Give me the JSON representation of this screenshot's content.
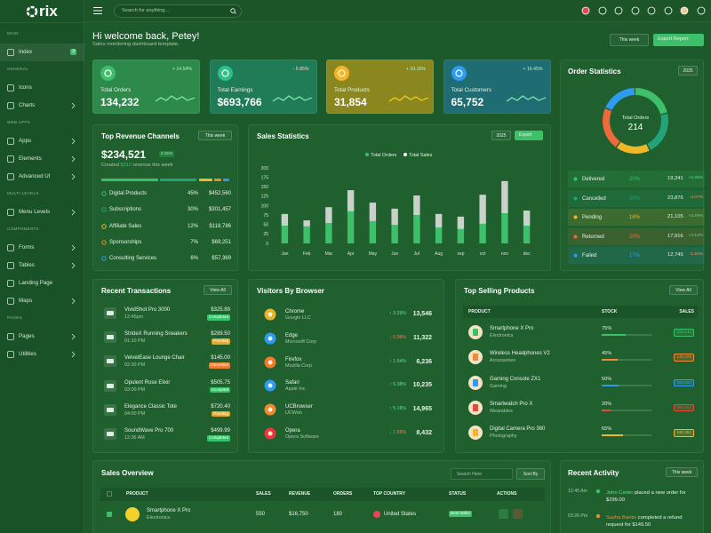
{
  "brand": "rix",
  "search_placeholder": "Search for anything...",
  "sidebar": [
    {
      "heading": "MAIN",
      "items": [
        {
          "label": "Index",
          "badge": "3"
        }
      ]
    },
    {
      "heading": "GENERAL",
      "items": [
        {
          "label": "Icons"
        },
        {
          "label": "Charts"
        }
      ]
    },
    {
      "heading": "WEB APPS",
      "items": [
        {
          "label": "Apps"
        },
        {
          "label": "Elements"
        },
        {
          "label": "Advanced UI"
        }
      ]
    },
    {
      "heading": "MULTI LEVELS",
      "items": [
        {
          "label": "Menu Levels"
        }
      ]
    },
    {
      "heading": "COMPONENTS",
      "items": [
        {
          "label": "Forms"
        },
        {
          "label": "Tables"
        },
        {
          "label": "Landing Page"
        },
        {
          "label": "Maps"
        }
      ]
    },
    {
      "heading": "PAGES",
      "items": [
        {
          "label": "Pages"
        },
        {
          "label": "Utilities"
        }
      ]
    }
  ],
  "header": {
    "greeting": "Hi welcome back, Petey!",
    "subtitle": "Sales monitoring dashboard template.",
    "period": "This week",
    "export": "Export Report"
  },
  "stats": [
    {
      "label": "Total Orders",
      "value": "134,232",
      "change": "+ 14.54%"
    },
    {
      "label": "Total Earnings",
      "value": "$693,766",
      "change": "- 5.85%"
    },
    {
      "label": "Total Products",
      "value": "31,854",
      "change": "+ 10.15%"
    },
    {
      "label": "Total Customers",
      "value": "65,752",
      "change": "+ 16.45%"
    }
  ],
  "revenue": {
    "title": "Top Revenue Channels",
    "period": "This week",
    "total": "$234,521",
    "change": "3.25%",
    "note_pre": "Created",
    "note_amount": "$312",
    "note_post": "revenue this week",
    "rows": [
      {
        "name": "Digital Products",
        "share": "45%",
        "amount": "$452,560"
      },
      {
        "name": "Subscriptions",
        "share": "30%",
        "amount": "$301,457"
      },
      {
        "name": "Affiliate Sales",
        "share": "12%",
        "amount": "$118,786"
      },
      {
        "name": "Sponsorships",
        "share": "7%",
        "amount": "$69,251"
      },
      {
        "name": "Consulting Services",
        "share": "6%",
        "amount": "$57,369"
      }
    ]
  },
  "sales_controls": {
    "year": "2025",
    "export": "Export"
  },
  "order_controls": {
    "year": "2025"
  },
  "order_rows": [
    {
      "count": "19,341",
      "change": "+4.26%"
    },
    {
      "count": "23,876",
      "change": "-4.07%"
    },
    {
      "count": "21,105",
      "change": "+3.29%"
    },
    {
      "count": "17,916",
      "change": "+4.12%"
    },
    {
      "count": "12,745",
      "change": "-1.94%"
    }
  ],
  "chart_data": [
    {
      "type": "bar",
      "stacked": true,
      "title": "Sales Statistics",
      "categories": [
        "Jan",
        "Feb",
        "Mar",
        "Apr",
        "May",
        "Jun",
        "Jul",
        "Aug",
        "sep",
        "oct",
        "nov",
        "dec"
      ],
      "series": [
        {
          "name": "Total Orders",
          "color": "#3ec06a",
          "values": [
            47,
            45,
            54,
            85,
            59,
            49,
            75,
            42,
            38,
            52,
            80,
            47
          ]
        },
        {
          "name": "Total Sales",
          "color": "#c9d1cb",
          "values": [
            31,
            16,
            42,
            56,
            49,
            43,
            52,
            36,
            33,
            77,
            85,
            40
          ]
        }
      ],
      "ylim": [
        0,
        200
      ],
      "yticks": [
        0,
        25,
        50,
        75,
        100,
        125,
        150,
        175,
        200
      ]
    },
    {
      "type": "pie",
      "donut": true,
      "title": "Order Statistics",
      "center_label": "Total Orders",
      "center_value": 214,
      "categories": [
        "Delivered",
        "Cancelled",
        "Pending",
        "Returned",
        "Failed"
      ],
      "values": [
        20,
        20,
        16,
        20,
        17
      ],
      "value_labels": [
        "20%",
        "20%",
        "16%",
        "20%",
        "17%"
      ],
      "colors": [
        "#3ec06a",
        "#22a37a",
        "#f2b62a",
        "#ef6a3a",
        "#2f9bf0"
      ]
    }
  ],
  "transactions": {
    "title": "Recent Transactions",
    "view_all": "View All",
    "rows": [
      {
        "name": "VividShot Pro 3000",
        "time": "12:45pm",
        "amount": "$325.89",
        "status": "Completed"
      },
      {
        "name": "StrideX Running Sneakers",
        "time": "01:10 PM",
        "amount": "$289.50",
        "status": "Pending"
      },
      {
        "name": "VelvetEase Lounge Chair",
        "time": "02:30 PM",
        "amount": "$145.00",
        "status": "Cancelled"
      },
      {
        "name": "Opulent Rose Elixir",
        "time": "03:00 PM",
        "amount": "$505.75",
        "status": "Accepted"
      },
      {
        "name": "Elegance Classic Tote",
        "time": "04:00 PM",
        "amount": "$720.40",
        "status": "Pending"
      },
      {
        "name": "SoundWave Pro 700",
        "time": "12:36 AM",
        "amount": "$499.99",
        "status": "Completed"
      }
    ]
  },
  "browsers": {
    "title": "Visitors By Browser",
    "rows": [
      {
        "name": "Chrome",
        "company": "Google LLC",
        "change": "↑ 3.26%",
        "count": "13,546"
      },
      {
        "name": "Edge",
        "company": "Microsoft Corp",
        "change": "↓ 0.96%",
        "count": "11,322"
      },
      {
        "name": "Firefox",
        "company": "Mozilla Corp",
        "change": "↑ 1.64%",
        "count": "6,236"
      },
      {
        "name": "Safari",
        "company": "Apple Inc",
        "change": "↑ 6.38%",
        "count": "10,235"
      },
      {
        "name": "UCBrowser",
        "company": "UCWeb",
        "change": "↑ 5.18%",
        "count": "14,965"
      },
      {
        "name": "Opera",
        "company": "Opera Software",
        "change": "↓ 1.65%",
        "count": "8,432"
      }
    ]
  },
  "top_products": {
    "title": "Top Selling Products",
    "view_all": "View All",
    "headers": [
      "PRODUCT",
      "STOCK",
      "SALES"
    ],
    "rows": [
      {
        "name": "Smartphone X Pro",
        "category": "Electronics",
        "stock": "75%",
        "sales": "550,142"
      },
      {
        "name": "Wireless Headphones V2",
        "category": "Accessories",
        "stock": "45%",
        "sales": "120,376"
      },
      {
        "name": "Gaming Console ZX1",
        "category": "Gaming",
        "stock": "50%",
        "sales": "800,502"
      },
      {
        "name": "Smartwatch Pro X",
        "category": "Wearables",
        "stock": "20%",
        "sales": "860,754"
      },
      {
        "name": "Digital Camera Pro 360",
        "category": "Photography",
        "stock": "65%",
        "sales": "180,351"
      }
    ]
  },
  "sales_overview": {
    "title": "Sales Overview",
    "search": "Search Here",
    "sort": "Sort By",
    "headers": [
      "PRODUCT",
      "SALES",
      "REVENUE",
      "ORDERS",
      "TOP COUNTRY",
      "STATUS",
      "ACTIONS"
    ],
    "rows": [
      {
        "name": "Smartphone X Pro",
        "category": "Electronics",
        "sales": "550",
        "revenue": "$16,750",
        "orders": "180",
        "country": "United States",
        "status": "Best Seller"
      }
    ]
  },
  "recent_activity": {
    "title": "Recent Activity",
    "period": "This week",
    "items": [
      {
        "time": "12:45 Am",
        "name": "John Carter",
        "text": "placed a new order for $299.00"
      },
      {
        "time": "03:26 Pm",
        "name": "Sasha Banks",
        "text": "completed a refund request for $149.50"
      }
    ]
  }
}
